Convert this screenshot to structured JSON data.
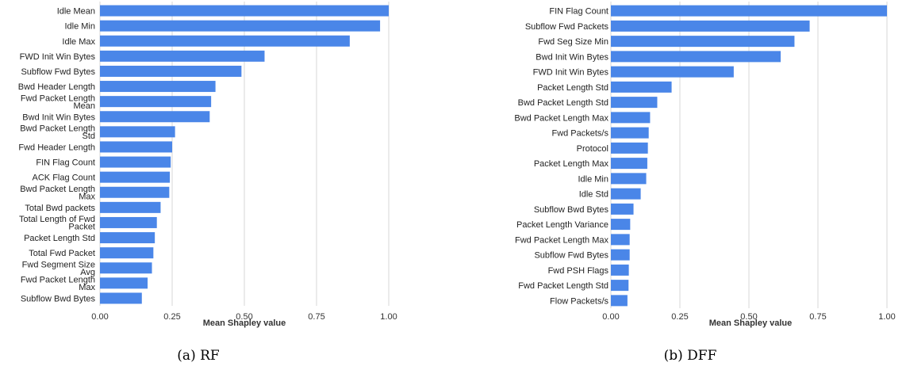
{
  "colors": {
    "bar": "#4a86e8",
    "grid": "#d7d7d7"
  },
  "chart_data": [
    {
      "type": "bar",
      "orientation": "horizontal",
      "caption": "(a) RF",
      "xlabel": "Mean Shapley value",
      "xlim": [
        0,
        1
      ],
      "xticks": [
        "0.00",
        "0.25",
        "0.50",
        "0.75",
        "1.00"
      ],
      "grid": true,
      "categories": [
        [
          "Idle Mean"
        ],
        [
          "Idle Min"
        ],
        [
          "Idle Max"
        ],
        [
          "FWD Init Win Bytes"
        ],
        [
          "Subflow Fwd Bytes"
        ],
        [
          "Bwd Header Length"
        ],
        [
          "Fwd Packet Length",
          "Mean"
        ],
        [
          "Bwd Init Win Bytes"
        ],
        [
          "Bwd Packet Length",
          "Std"
        ],
        [
          "Fwd Header Length"
        ],
        [
          "FIN Flag Count"
        ],
        [
          "ACK Flag Count"
        ],
        [
          "Bwd Packet Length",
          "Max"
        ],
        [
          "Total Bwd packets"
        ],
        [
          "Total Length of Fwd",
          "Packet"
        ],
        [
          "Packet Length Std"
        ],
        [
          "Total Fwd Packet"
        ],
        [
          "Fwd Segment Size",
          "Avg"
        ],
        [
          "Fwd Packet Length",
          "Max"
        ],
        [
          "Subflow Bwd Bytes"
        ]
      ],
      "values": [
        1.0,
        0.97,
        0.865,
        0.57,
        0.49,
        0.4,
        0.385,
        0.38,
        0.26,
        0.25,
        0.245,
        0.242,
        0.24,
        0.21,
        0.197,
        0.19,
        0.185,
        0.18,
        0.165,
        0.145
      ]
    },
    {
      "type": "bar",
      "orientation": "horizontal",
      "caption": "(b) DFF",
      "xlabel": "Mean Shapley value",
      "xlim": [
        0,
        1
      ],
      "xticks": [
        "0.00",
        "0.25",
        "0.50",
        "0.75",
        "1.00"
      ],
      "grid": true,
      "categories": [
        [
          "FIN Flag Count"
        ],
        [
          "Subflow Fwd Packets"
        ],
        [
          "Fwd Seg Size Min"
        ],
        [
          "Bwd Init Win Bytes"
        ],
        [
          "FWD Init Win Bytes"
        ],
        [
          "Packet Length Std"
        ],
        [
          "Bwd Packet Length Std"
        ],
        [
          "Bwd Packet Length Max"
        ],
        [
          "Fwd Packets/s"
        ],
        [
          "Protocol"
        ],
        [
          "Packet Length Max"
        ],
        [
          "Idle Min"
        ],
        [
          "Idle Std"
        ],
        [
          "Subflow Bwd Bytes"
        ],
        [
          "Packet Length Variance"
        ],
        [
          "Fwd Packet Length Max"
        ],
        [
          "Subflow Fwd Bytes"
        ],
        [
          "Fwd PSH Flags"
        ],
        [
          "Fwd Packet Length Std"
        ],
        [
          "Flow Packets/s"
        ]
      ],
      "values": [
        1.0,
        0.72,
        0.665,
        0.615,
        0.445,
        0.22,
        0.168,
        0.142,
        0.137,
        0.134,
        0.132,
        0.128,
        0.108,
        0.082,
        0.07,
        0.068,
        0.068,
        0.065,
        0.064,
        0.06
      ]
    }
  ]
}
